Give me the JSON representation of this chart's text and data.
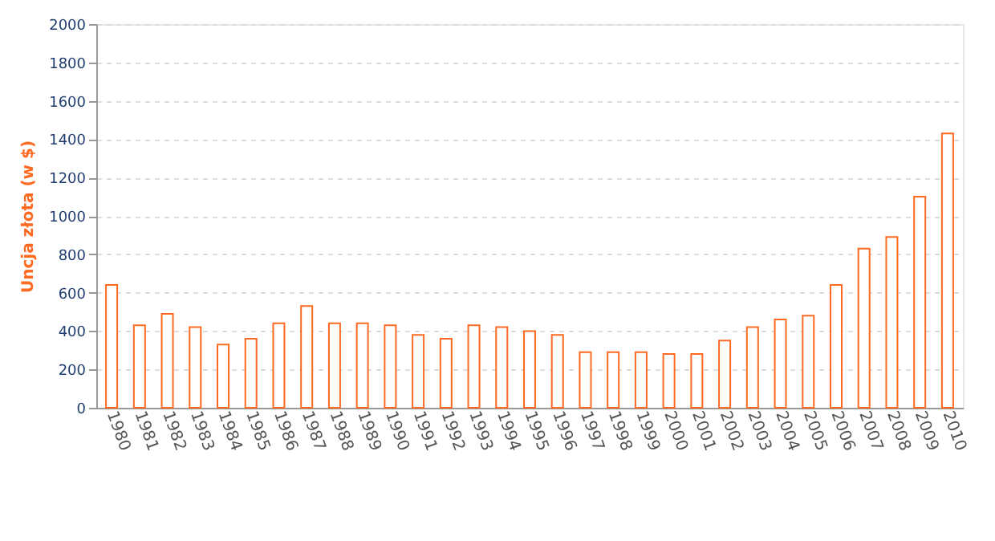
{
  "chart_data": {
    "type": "bar",
    "ylabel": "Uncja złota (w $)",
    "categories": [
      "1980",
      "1981",
      "1982",
      "1983",
      "1984",
      "1985",
      "1986",
      "1987",
      "1988",
      "1989",
      "1990",
      "1991",
      "1992",
      "1993",
      "1994",
      "1995",
      "1996",
      "1997",
      "1998",
      "1999",
      "2000",
      "2001",
      "2002",
      "2003",
      "2004",
      "2005",
      "2006",
      "2007",
      "2008",
      "2009",
      "2010"
    ],
    "values": [
      640,
      430,
      490,
      420,
      330,
      360,
      440,
      530,
      440,
      440,
      430,
      380,
      360,
      430,
      420,
      400,
      380,
      290,
      290,
      290,
      280,
      280,
      350,
      420,
      460,
      480,
      640,
      830,
      890,
      1100,
      1430
    ],
    "color": "#ff6a22",
    "ylim": [
      0,
      2000
    ],
    "yticks": [
      0,
      200,
      400,
      600,
      800,
      1000,
      1200,
      1400,
      1600,
      1800,
      2000
    ],
    "grid": "y"
  }
}
